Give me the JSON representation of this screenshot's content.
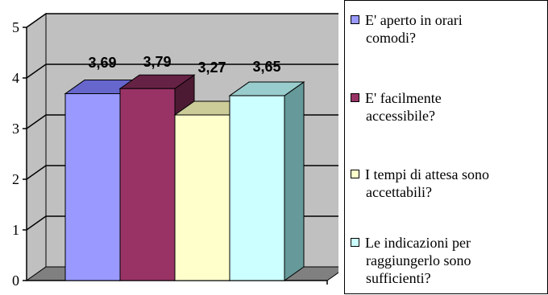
{
  "chart_data": {
    "type": "bar",
    "title": "",
    "xlabel": "",
    "ylabel": "",
    "ylim": [
      0,
      5
    ],
    "yticks": [
      "0",
      "1",
      "2",
      "3",
      "4",
      "5"
    ],
    "grid": true,
    "legend_position": "right",
    "three_d": true,
    "series": [
      {
        "name": "E' aperto in orari comodi?",
        "value": 3.69,
        "label": "3,69",
        "color": "#9999ff"
      },
      {
        "name": "E' facilmente accessibile?",
        "value": 3.79,
        "label": "3,79",
        "color": "#993366"
      },
      {
        "name": "I tempi di attesa sono accettabili?",
        "value": 3.27,
        "label": "3,27",
        "color": "#ffffcc"
      },
      {
        "name": "Le indicazioni per raggiungerlo sono sufficienti?",
        "value": 3.65,
        "label": "3,65",
        "color": "#ccffff"
      }
    ],
    "colors": {
      "wall": "#c0c0c0",
      "floor": "#808080",
      "gridline": "#000000"
    }
  },
  "legend": {
    "items": [
      {
        "line1": "E' aperto in orari",
        "line2": "comodi?",
        "line3": ""
      },
      {
        "line1": "E' facilmente",
        "line2": "accessibile?",
        "line3": ""
      },
      {
        "line1": "I tempi di attesa sono",
        "line2": "accettabili?",
        "line3": ""
      },
      {
        "line1": "Le indicazioni per",
        "line2": "raggiungerlo sono",
        "line3": "sufficienti?"
      }
    ]
  }
}
